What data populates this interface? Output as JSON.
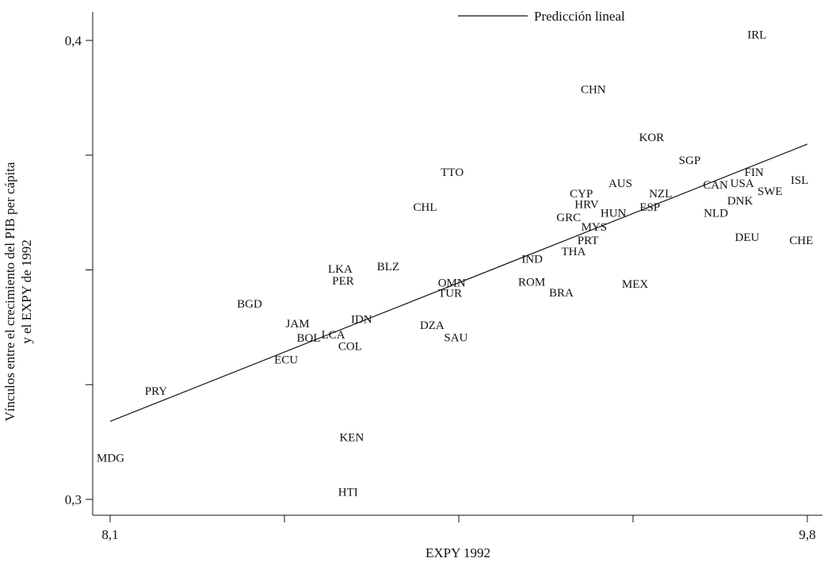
{
  "chart_data": {
    "type": "scatter",
    "title": "",
    "xlabel": "EXPY 1992",
    "ylabel_line1": "Vínculos entre el crecimiento del PIB per cápita",
    "ylabel_line2": "y el EXPY de 1992",
    "xlim": [
      8.1,
      9.8
    ],
    "ylim": [
      0.3,
      0.4
    ],
    "x_ticks": [
      8.1,
      8.525,
      8.95,
      9.375,
      9.8
    ],
    "x_tick_labels": [
      "8,1",
      "",
      "",
      "",
      "9,8"
    ],
    "y_ticks": [
      0.3,
      0.325,
      0.35,
      0.375,
      0.4
    ],
    "y_tick_labels": [
      "0,3",
      "",
      "",
      "",
      "0,4"
    ],
    "legend": {
      "label": "Predicción lineal",
      "position": "top-center"
    },
    "fit_line": {
      "x": [
        8.1,
        9.8
      ],
      "y": [
        0.317,
        0.3774
      ]
    },
    "points": [
      {
        "label": "IRL",
        "x": 9.677,
        "y": 0.4013
      },
      {
        "label": "CHN",
        "x": 9.278,
        "y": 0.3894
      },
      {
        "label": "KOR",
        "x": 9.42,
        "y": 0.3789
      },
      {
        "label": "SGP",
        "x": 9.513,
        "y": 0.3739
      },
      {
        "label": "FIN",
        "x": 9.67,
        "y": 0.3713
      },
      {
        "label": "ISL",
        "x": 9.781,
        "y": 0.3696
      },
      {
        "label": "TTO",
        "x": 8.934,
        "y": 0.3713
      },
      {
        "label": "AUS",
        "x": 9.344,
        "y": 0.3689
      },
      {
        "label": "CAN",
        "x": 9.576,
        "y": 0.3686
      },
      {
        "label": "USA",
        "x": 9.641,
        "y": 0.3689
      },
      {
        "label": "SWE",
        "x": 9.709,
        "y": 0.3672
      },
      {
        "label": "CYP",
        "x": 9.249,
        "y": 0.3667
      },
      {
        "label": "NZL",
        "x": 9.442,
        "y": 0.3667
      },
      {
        "label": "DNK",
        "x": 9.636,
        "y": 0.3651
      },
      {
        "label": "HRV",
        "x": 9.262,
        "y": 0.3643
      },
      {
        "label": "CHL",
        "x": 8.868,
        "y": 0.3637
      },
      {
        "label": "ESP",
        "x": 9.416,
        "y": 0.3637
      },
      {
        "label": "HUN",
        "x": 9.327,
        "y": 0.3624
      },
      {
        "label": "NLD",
        "x": 9.577,
        "y": 0.3624
      },
      {
        "label": "GRC",
        "x": 9.218,
        "y": 0.3615
      },
      {
        "label": "MYS",
        "x": 9.28,
        "y": 0.3594
      },
      {
        "label": "PRT",
        "x": 9.265,
        "y": 0.3565
      },
      {
        "label": "DEU",
        "x": 9.653,
        "y": 0.3572
      },
      {
        "label": "CHE",
        "x": 9.785,
        "y": 0.3565
      },
      {
        "label": "THA",
        "x": 9.23,
        "y": 0.3541
      },
      {
        "label": "IND",
        "x": 9.129,
        "y": 0.3524
      },
      {
        "label": "LKA",
        "x": 8.661,
        "y": 0.3503
      },
      {
        "label": "BLZ",
        "x": 8.778,
        "y": 0.3508
      },
      {
        "label": "PER",
        "x": 8.668,
        "y": 0.3477
      },
      {
        "label": "OMN",
        "x": 8.933,
        "y": 0.3472
      },
      {
        "label": "ROM",
        "x": 9.128,
        "y": 0.3474
      },
      {
        "label": "MEX",
        "x": 9.38,
        "y": 0.347
      },
      {
        "label": "TUR",
        "x": 8.929,
        "y": 0.345
      },
      {
        "label": "BRA",
        "x": 9.2,
        "y": 0.3451
      },
      {
        "label": "BGD",
        "x": 8.44,
        "y": 0.3427
      },
      {
        "label": "IDN",
        "x": 8.713,
        "y": 0.3393
      },
      {
        "label": "JAM",
        "x": 8.557,
        "y": 0.3383
      },
      {
        "label": "DZA",
        "x": 8.885,
        "y": 0.338
      },
      {
        "label": "LCA",
        "x": 8.644,
        "y": 0.3359
      },
      {
        "label": "BOL",
        "x": 8.584,
        "y": 0.3352
      },
      {
        "label": "SAU",
        "x": 8.943,
        "y": 0.3353
      },
      {
        "label": "COL",
        "x": 8.685,
        "y": 0.3334
      },
      {
        "label": "ECU",
        "x": 8.529,
        "y": 0.3305
      },
      {
        "label": "PRY",
        "x": 8.212,
        "y": 0.3237
      },
      {
        "label": "KEN",
        "x": 8.689,
        "y": 0.3136
      },
      {
        "label": "MDG",
        "x": 8.101,
        "y": 0.3091
      },
      {
        "label": "HTI",
        "x": 8.68,
        "y": 0.3016
      }
    ]
  }
}
